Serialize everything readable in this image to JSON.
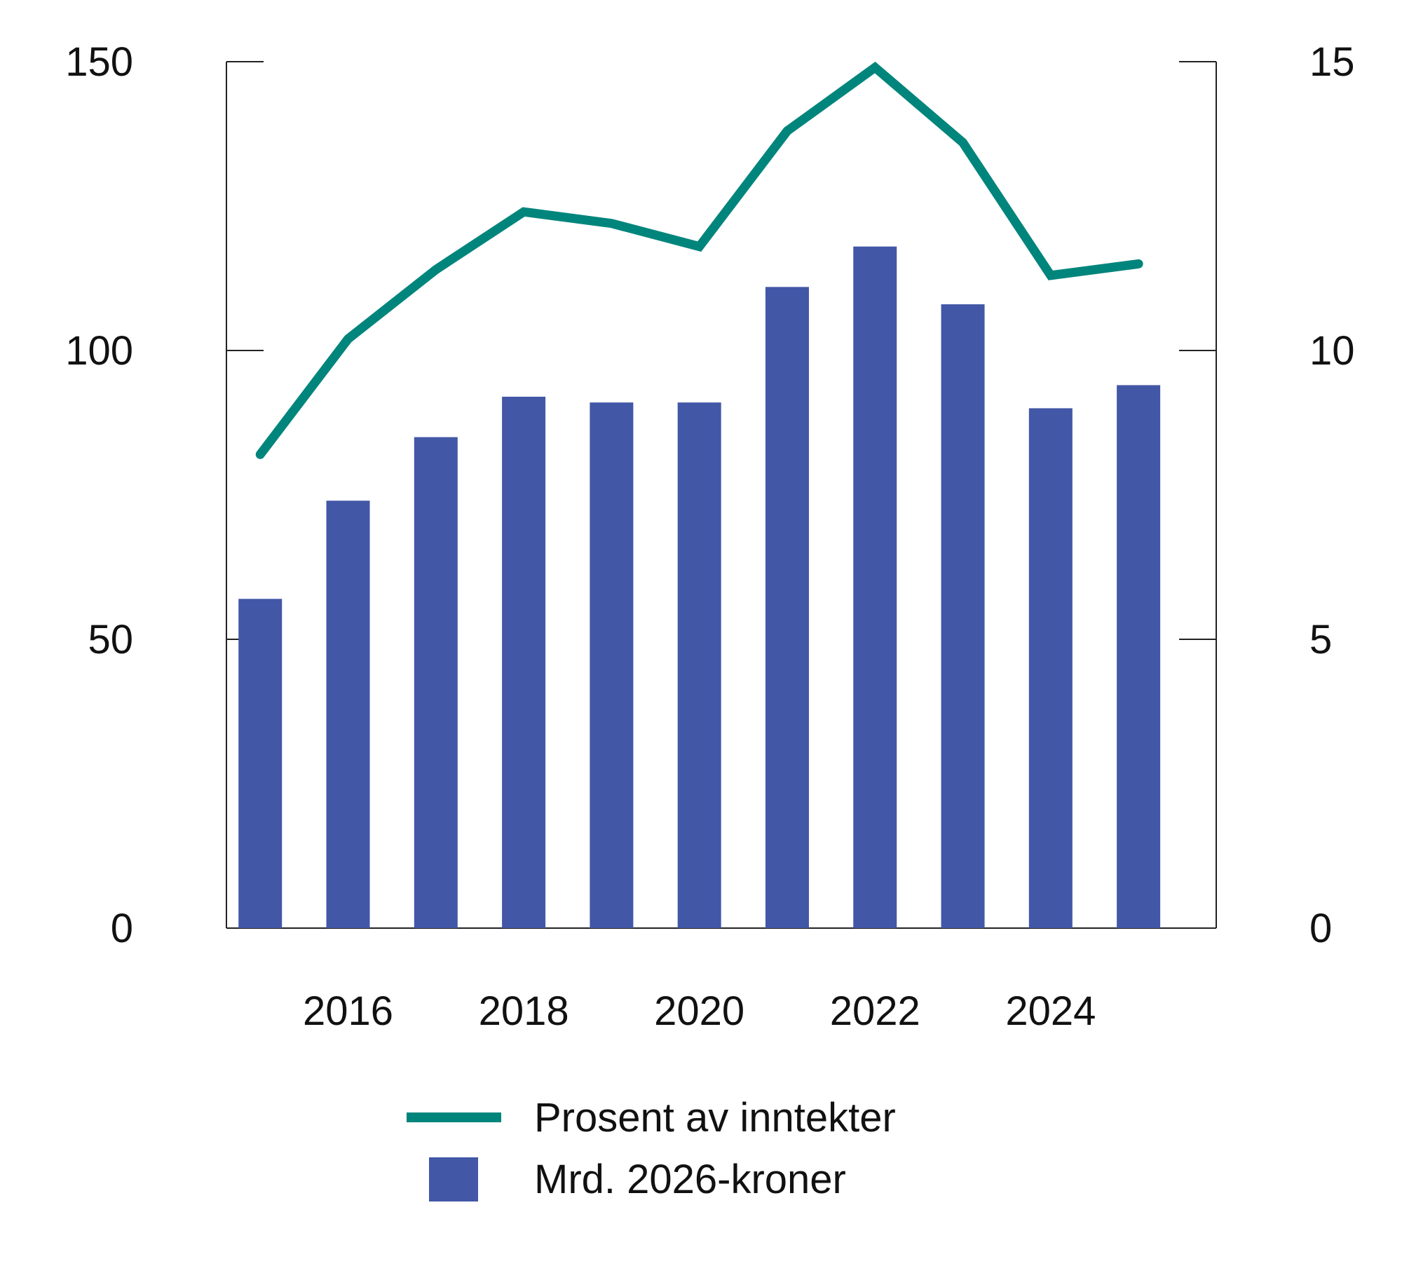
{
  "chart_data": {
    "type": "bar+line",
    "x": [
      2015,
      2016,
      2017,
      2018,
      2019,
      2020,
      2021,
      2022,
      2023,
      2024,
      2025
    ],
    "x_tick_labels": [
      "2016",
      "2018",
      "2020",
      "2022",
      "2024"
    ],
    "x_tick_values": [
      2016,
      2018,
      2020,
      2022,
      2024
    ],
    "y_left": {
      "ticks": [
        "0",
        "50",
        "100",
        "150"
      ],
      "ylim": [
        0,
        150
      ]
    },
    "y_right": {
      "ticks": [
        "0",
        "5",
        "10",
        "15"
      ],
      "ylim": [
        0,
        15
      ]
    },
    "series": [
      {
        "name": "Mrd. 2026-kroner",
        "kind": "bar",
        "axis": "left",
        "color": "#4257a6",
        "values": [
          57,
          74,
          85,
          92,
          91,
          91,
          111,
          118,
          108,
          90,
          94
        ]
      },
      {
        "name": "Prosent av inntekter",
        "kind": "line",
        "axis": "right",
        "color": "#00857c",
        "values": [
          8.2,
          10.2,
          11.4,
          12.4,
          12.2,
          11.8,
          13.8,
          14.9,
          13.6,
          11.3,
          11.5
        ]
      }
    ],
    "legend_position": "bottom",
    "grid": false
  }
}
